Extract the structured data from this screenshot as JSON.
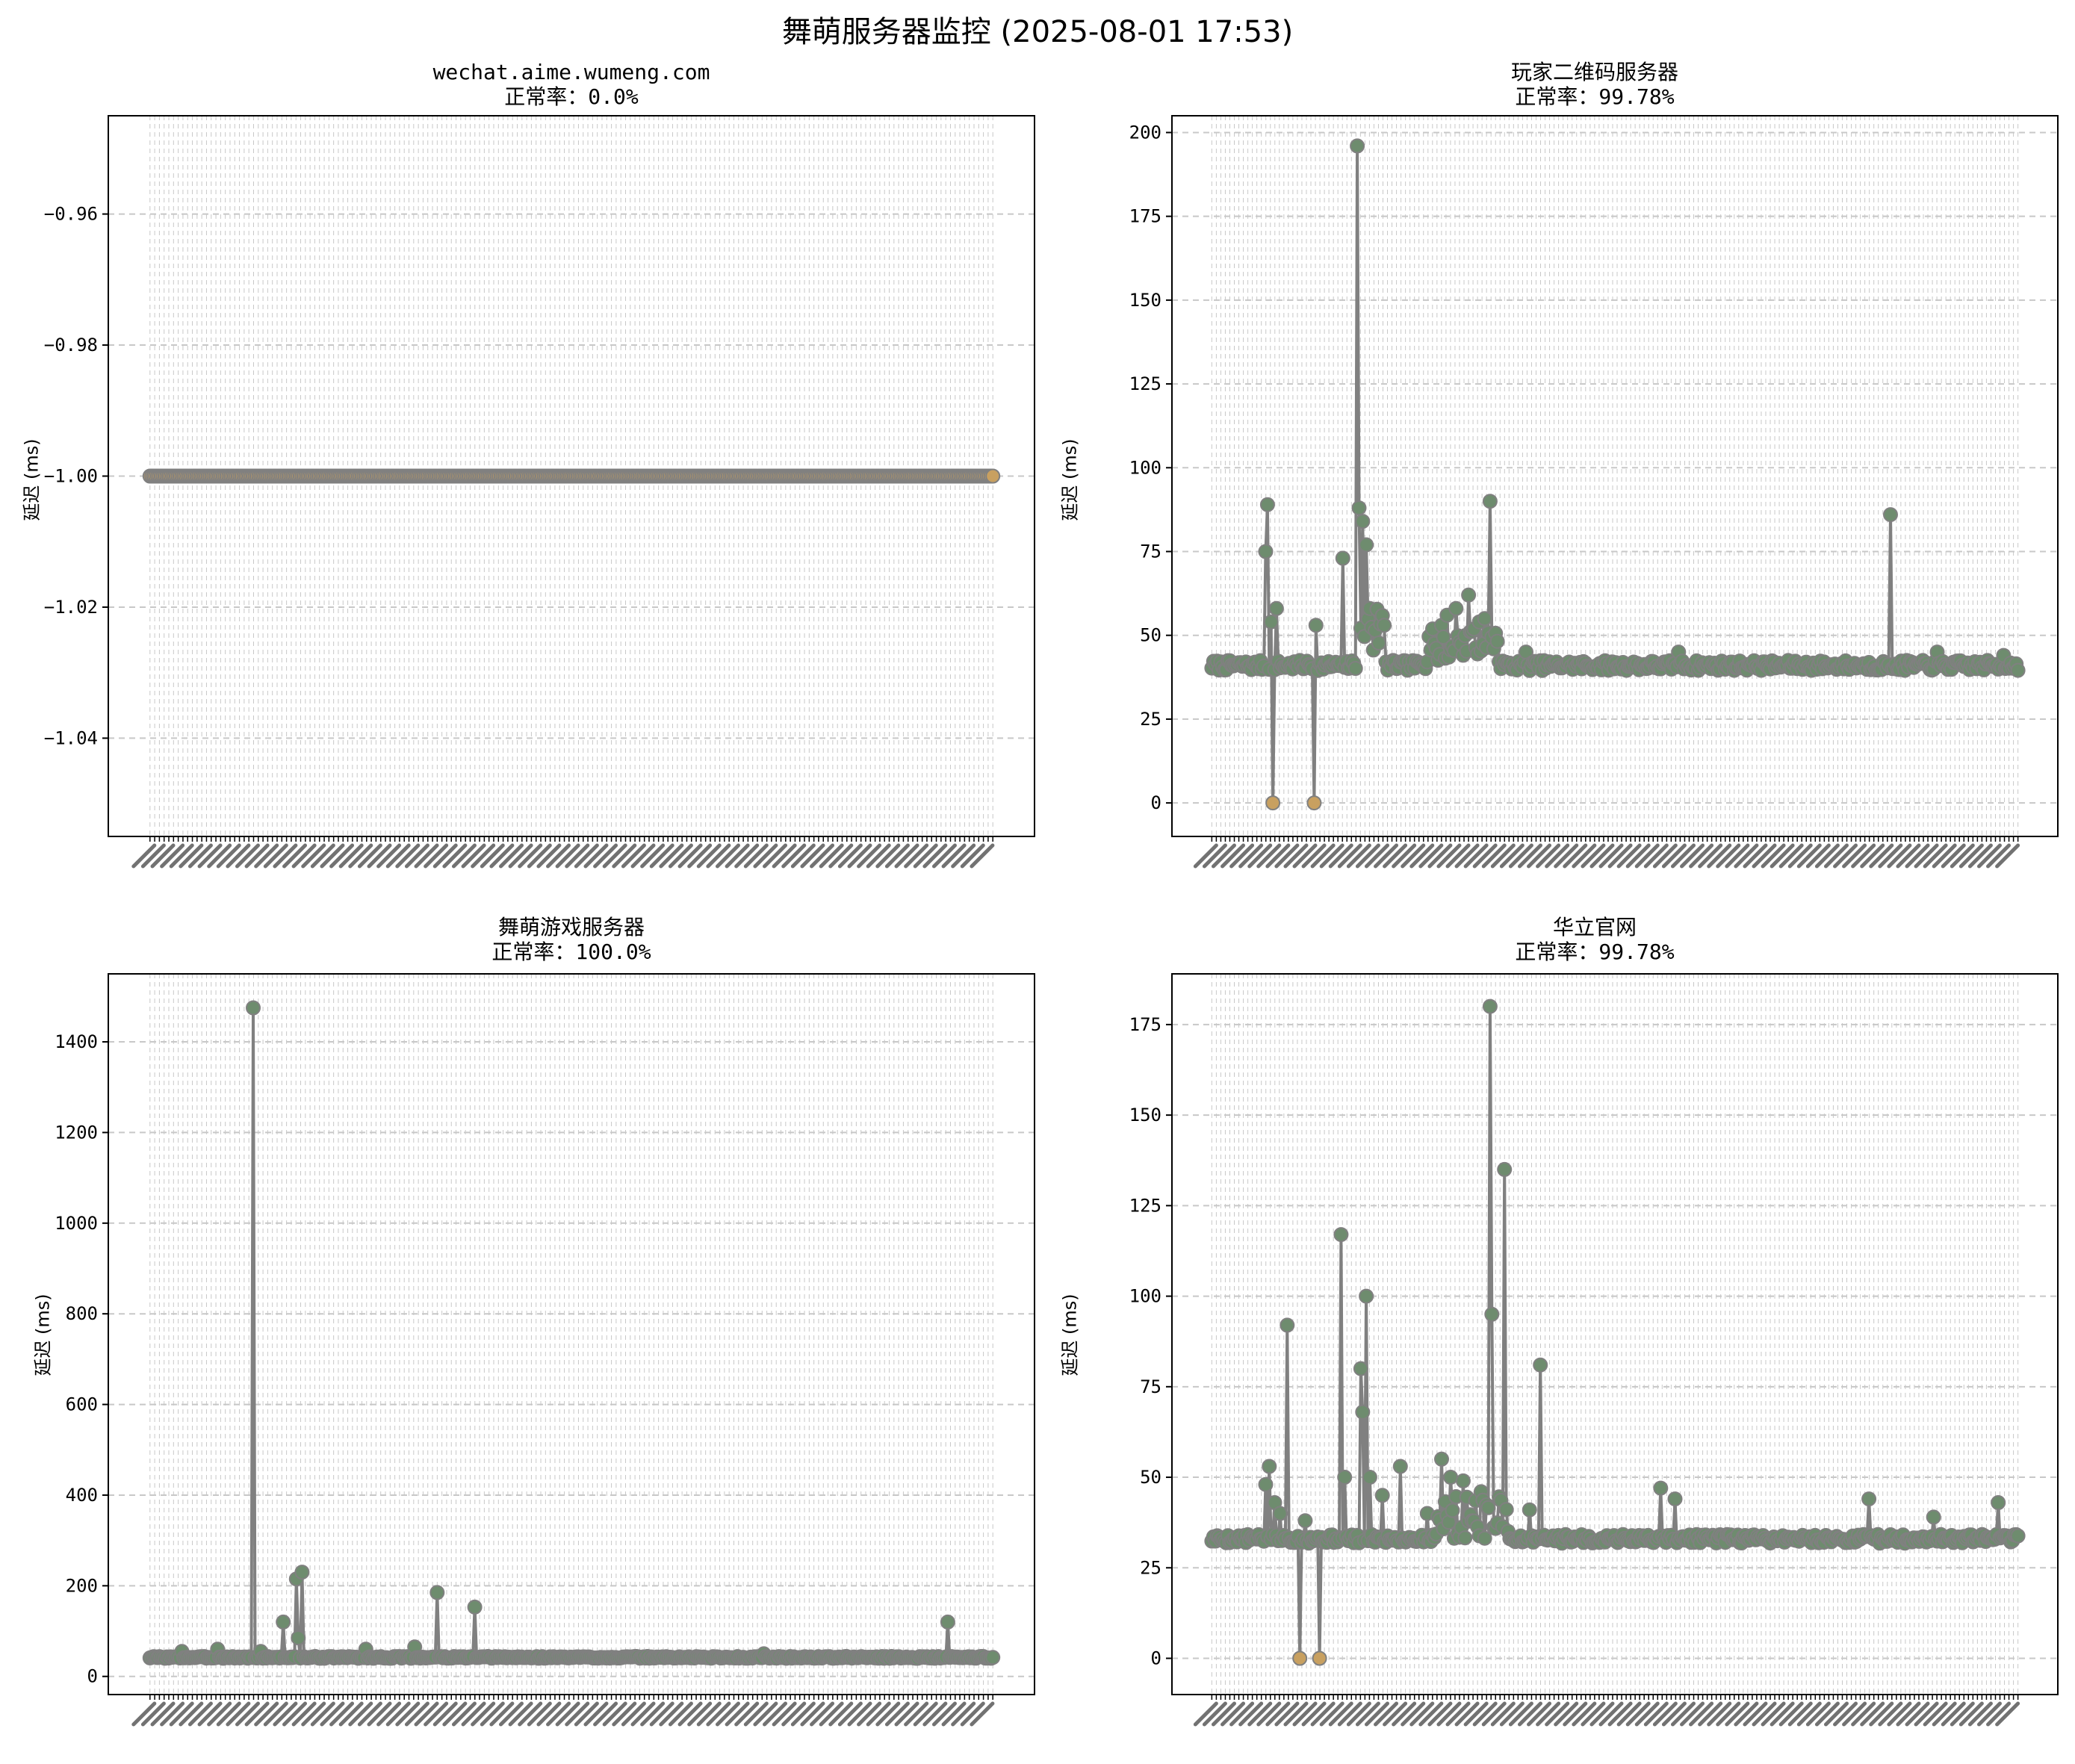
{
  "suptitle": "舞萌服务器监控 (2025-08-01 17:53)",
  "colors": {
    "line": "#808080",
    "ok_marker": "#6e8c6e",
    "fail_marker": "#c8a060",
    "grid": "#c8c8c8"
  },
  "charts": [
    {
      "title_main": "wechat.aime.wumeng.com",
      "title_rate": "正常率：0.0%",
      "ylabel": "延迟 (ms)",
      "ylim": [
        -1.055,
        -0.945
      ],
      "yticks": [
        -1.04,
        -1.02,
        -1.0,
        -0.98,
        -0.96
      ],
      "ytick_labels": [
        "−1.04",
        "−1.02",
        "−1.00",
        "−0.98",
        "−0.96"
      ],
      "baseline": -1.0,
      "jitter": 0,
      "seed": 11,
      "spikes": [],
      "failures": "all"
    },
    {
      "title_main": "玩家二维码服务器",
      "title_rate": "正常率：99.78%",
      "ylabel": "延迟 (ms)",
      "ylim": [
        -10,
        205
      ],
      "yticks": [
        0,
        25,
        50,
        75,
        100,
        125,
        150,
        175,
        200
      ],
      "ytick_labels": [
        "0",
        "25",
        "50",
        "75",
        "100",
        "125",
        "150",
        "175",
        "200"
      ],
      "baseline": 41,
      "jitter": 1.5,
      "seed": 7,
      "spikes": [
        [
          30,
          75
        ],
        [
          31,
          89
        ],
        [
          33,
          54
        ],
        [
          36,
          58
        ],
        [
          58,
          53
        ],
        [
          73,
          73
        ],
        [
          81,
          196
        ],
        [
          82,
          88
        ],
        [
          84,
          84
        ],
        [
          86,
          77
        ],
        [
          88,
          58
        ],
        [
          128,
          53
        ],
        [
          131,
          56
        ],
        [
          136,
          58
        ],
        [
          143,
          62
        ],
        [
          149,
          54
        ],
        [
          152,
          55
        ],
        [
          155,
          90
        ],
        [
          175,
          45
        ],
        [
          250,
          40
        ],
        [
          260,
          45
        ],
        [
          378,
          86
        ],
        [
          404,
          45
        ],
        [
          441,
          44
        ]
      ],
      "bands": [
        [
          120,
          160,
          42,
          52
        ],
        [
          81,
          96,
          44,
          60
        ]
      ],
      "fail_points": [
        34,
        57
      ]
    },
    {
      "title_main": "舞萌游戏服务器",
      "title_rate": "正常率：100.0%",
      "ylabel": "延迟 (ms)",
      "ylim": [
        -40,
        1550
      ],
      "yticks": [
        0,
        200,
        400,
        600,
        800,
        1000,
        1200,
        1400
      ],
      "ytick_labels": [
        "0",
        "200",
        "400",
        "600",
        "800",
        "1000",
        "1200",
        "1400"
      ],
      "baseline": 42,
      "jitter": 2,
      "seed": 3,
      "spikes": [
        [
          17,
          55
        ],
        [
          36,
          60
        ],
        [
          55,
          1475
        ],
        [
          59,
          55
        ],
        [
          71,
          120
        ],
        [
          78,
          215
        ],
        [
          79,
          85
        ],
        [
          81,
          230
        ],
        [
          115,
          60
        ],
        [
          141,
          65
        ],
        [
          153,
          185
        ],
        [
          173,
          153
        ],
        [
          327,
          50
        ],
        [
          425,
          120
        ]
      ],
      "bands": [],
      "fail_points": []
    },
    {
      "title_main": "华立官网",
      "title_rate": "正常率：99.78%",
      "ylabel": "延迟 (ms)",
      "ylim": [
        -10,
        189
      ],
      "yticks": [
        0,
        25,
        50,
        75,
        100,
        125,
        150,
        175
      ],
      "ytick_labels": [
        "0",
        "25",
        "50",
        "75",
        "100",
        "125",
        "150",
        "175"
      ],
      "baseline": 33,
      "jitter": 1.2,
      "seed": 5,
      "spikes": [
        [
          30,
          48
        ],
        [
          32,
          53
        ],
        [
          35,
          43
        ],
        [
          38,
          40
        ],
        [
          42,
          92
        ],
        [
          52,
          38
        ],
        [
          60,
          40
        ],
        [
          72,
          117
        ],
        [
          74,
          50
        ],
        [
          83,
          80
        ],
        [
          84,
          68
        ],
        [
          86,
          100
        ],
        [
          88,
          50
        ],
        [
          95,
          45
        ],
        [
          105,
          53
        ],
        [
          120,
          40
        ],
        [
          128,
          55
        ],
        [
          133,
          50
        ],
        [
          140,
          49
        ],
        [
          150,
          46
        ],
        [
          155,
          180
        ],
        [
          156,
          95
        ],
        [
          163,
          135
        ],
        [
          177,
          41
        ],
        [
          183,
          81
        ],
        [
          250,
          47
        ],
        [
          258,
          44
        ],
        [
          366,
          44
        ],
        [
          402,
          39
        ],
        [
          438,
          43
        ]
      ],
      "bands": [
        [
          125,
          165,
          33,
          45
        ]
      ],
      "fail_points": [
        49,
        60
      ]
    }
  ]
}
